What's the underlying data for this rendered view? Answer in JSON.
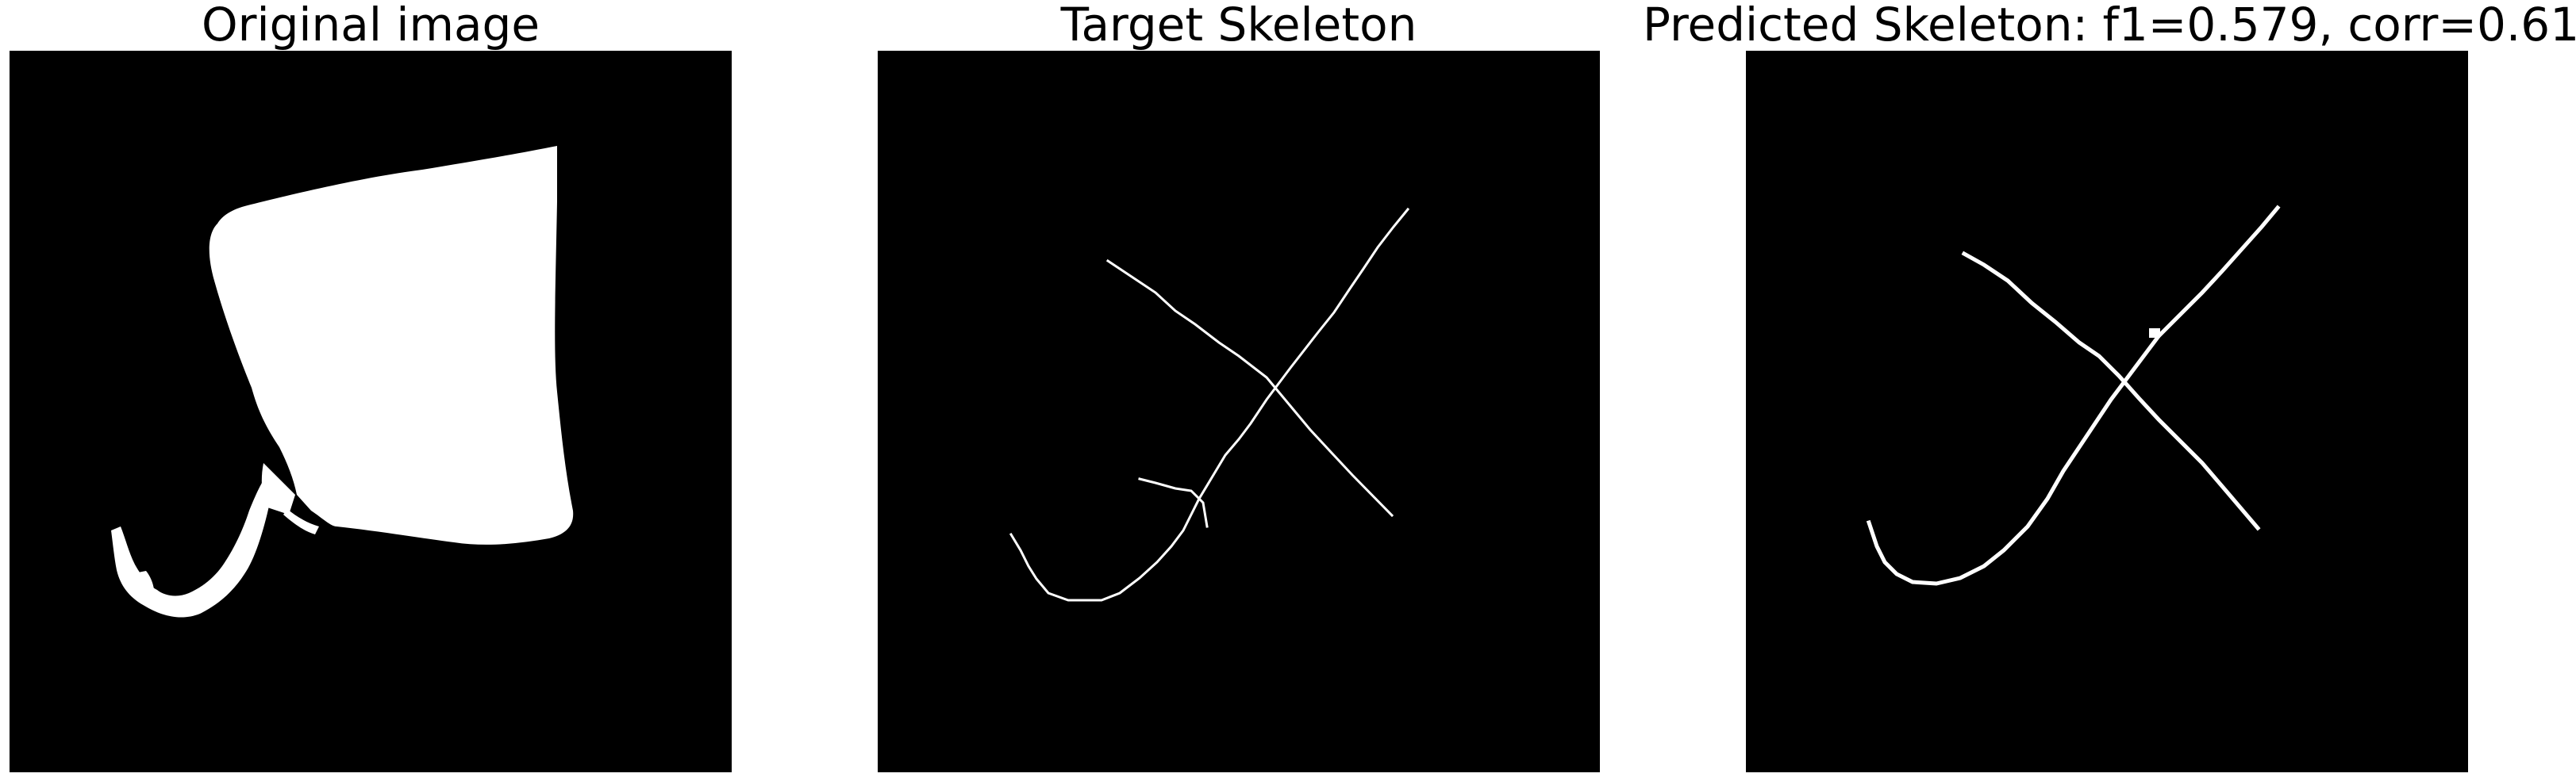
{
  "panels": [
    {
      "title": "Original image"
    },
    {
      "title": "Target Skeleton"
    },
    {
      "title": "Predicted Skeleton: f1=0.579, corr=0.610"
    }
  ],
  "colors": {
    "background": "#000000",
    "foreground": "#ffffff",
    "page": "#ffffff"
  }
}
